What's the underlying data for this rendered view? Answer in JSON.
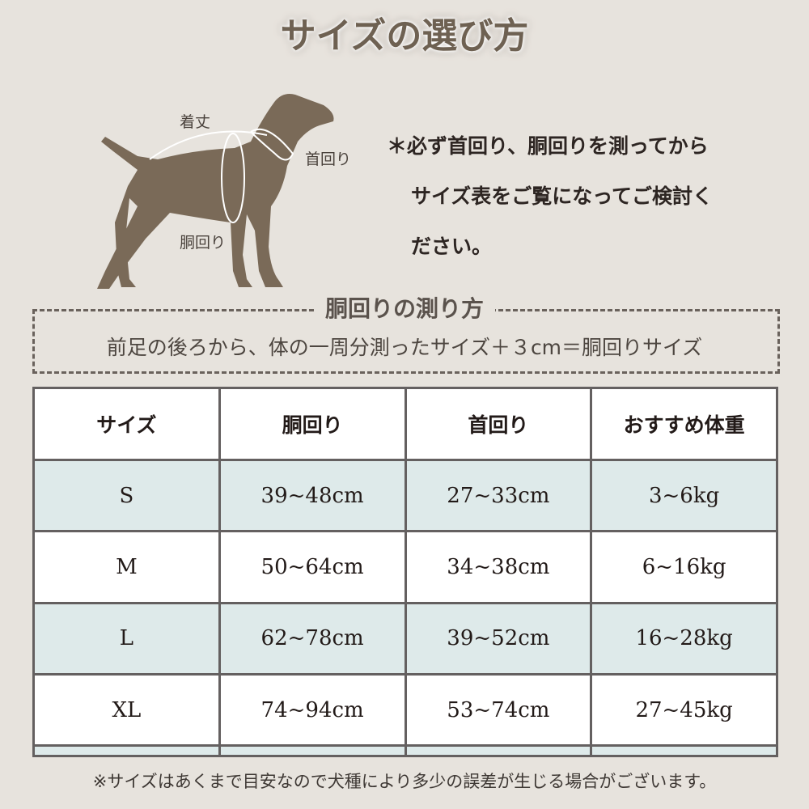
{
  "title": "サイズの選び方",
  "diagram": {
    "length_label": "着丈",
    "neck_label": "首回り",
    "chest_label": "胴回り",
    "dog_color": "#7a6a58"
  },
  "note": {
    "line1": "＊必ず首回り、胴回りを測ってから",
    "line2": "サイズ表をご覧になってご検討く",
    "line3": "ださい。"
  },
  "measure": {
    "title": "胴回りの測り方",
    "text": "前足の後ろから、体の一周分測ったサイズ＋３cm＝胴回りサイズ"
  },
  "table": {
    "headers": [
      "サイズ",
      "胴回り",
      "首回り",
      "おすすめ体重"
    ],
    "rows": [
      [
        "S",
        "39~48cm",
        "27~33cm",
        "3~6kg"
      ],
      [
        "M",
        "50~64cm",
        "34~38cm",
        "6~16kg"
      ],
      [
        "L",
        "62~78cm",
        "39~52cm",
        "16~28kg"
      ],
      [
        "XL",
        "74~94cm",
        "53~74cm",
        "27~45kg"
      ],
      [
        "",
        "",
        "",
        ""
      ]
    ]
  },
  "footer": "※サイズはあくまで目安なので犬種により多少の誤差が生じる場合がございます。"
}
